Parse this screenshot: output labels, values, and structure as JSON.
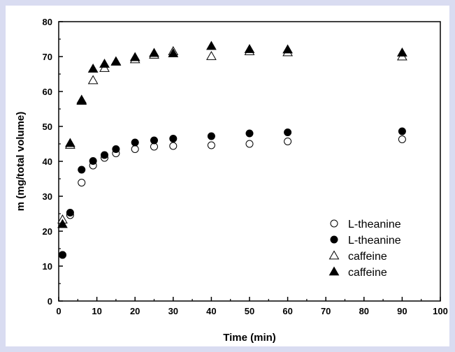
{
  "chart_data": {
    "type": "scatter",
    "title": "",
    "xlabel": "Time (min)",
    "ylabel": "m (mg/total volume)",
    "xlim": [
      0,
      100
    ],
    "ylim": [
      0,
      80
    ],
    "xticks": [
      0,
      10,
      20,
      30,
      40,
      50,
      60,
      70,
      80,
      90,
      100
    ],
    "yticks": [
      0,
      10,
      20,
      30,
      40,
      50,
      60,
      70,
      80
    ],
    "grid": false,
    "legend_position": "bottom-right",
    "series": [
      {
        "name": "L-theanine",
        "marker": "circle-open",
        "x": [
          1,
          3,
          6,
          9,
          12,
          15,
          20,
          25,
          30,
          40,
          50,
          60,
          90
        ],
        "y": [
          13.2,
          24.6,
          33.9,
          38.8,
          41.0,
          42.3,
          43.5,
          44.2,
          44.4,
          44.6,
          45.0,
          45.7,
          46.3
        ]
      },
      {
        "name": "L-theanine",
        "marker": "circle-filled",
        "x": [
          1,
          3,
          6,
          9,
          12,
          15,
          20,
          25,
          30,
          40,
          50,
          60,
          90
        ],
        "y": [
          13.2,
          25.3,
          37.6,
          40.1,
          41.8,
          43.5,
          45.4,
          46.0,
          46.5,
          47.2,
          48.0,
          48.3,
          48.6
        ]
      },
      {
        "name": "caffeine",
        "marker": "triangle-open",
        "x": [
          1,
          3,
          6,
          9,
          12,
          15,
          20,
          25,
          30,
          40,
          50,
          60,
          90
        ],
        "y": [
          23.3,
          44.7,
          57.6,
          63.2,
          66.7,
          68.5,
          69.2,
          70.5,
          71.5,
          70.1,
          71.5,
          71.2,
          70.0
        ]
      },
      {
        "name": "caffeine",
        "marker": "triangle-filled",
        "x": [
          1,
          3,
          6,
          9,
          12,
          15,
          20,
          25,
          30,
          40,
          50,
          60,
          90
        ],
        "y": [
          22.0,
          45.2,
          57.3,
          66.5,
          67.9,
          68.6,
          69.8,
          71.0,
          70.9,
          73.0,
          72.1,
          72.0,
          71.1
        ]
      }
    ]
  }
}
